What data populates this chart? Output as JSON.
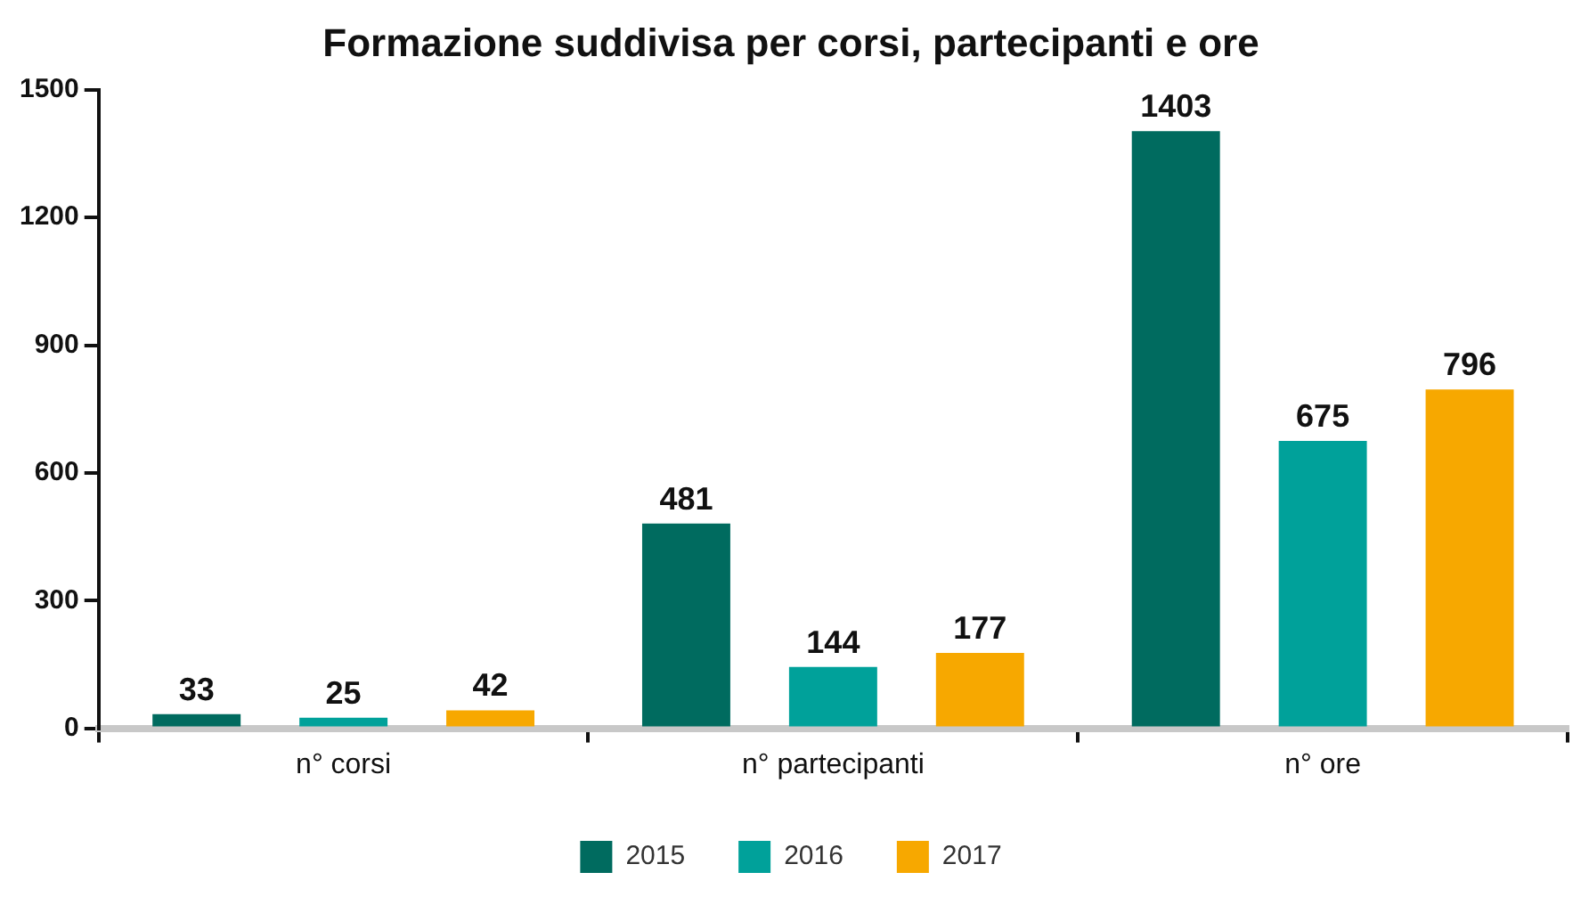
{
  "chart_data": {
    "type": "bar",
    "title": "Formazione suddivisa per corsi, partecipanti e ore",
    "categories": [
      "n° corsi",
      "n° partecipanti",
      "n° ore"
    ],
    "series": [
      {
        "name": "2015",
        "color": "#006b5f",
        "values": [
          33,
          481,
          1403
        ]
      },
      {
        "name": "2016",
        "color": "#00a19a",
        "values": [
          25,
          144,
          675
        ]
      },
      {
        "name": "2017",
        "color": "#f7a800",
        "values": [
          42,
          177,
          796
        ]
      }
    ],
    "ylim": [
      0,
      1500
    ],
    "yticks": [
      0,
      300,
      600,
      900,
      1200,
      1500
    ],
    "grid": false,
    "legend": "bottom",
    "data_labels": true
  }
}
